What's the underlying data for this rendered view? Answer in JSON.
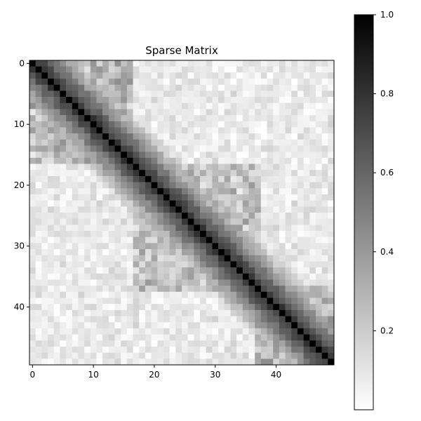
{
  "chart_data": {
    "type": "heatmap",
    "title": "Sparse Matrix",
    "xlabel": "",
    "ylabel": "",
    "rows": 50,
    "cols": 50,
    "x_ticks": [
      0,
      10,
      20,
      30,
      40
    ],
    "y_ticks": [
      0,
      10,
      20,
      30,
      40
    ],
    "colormap": "gray_r",
    "colorbar": {
      "min": 0.0,
      "max": 1.0,
      "ticks": [
        "0.2",
        "0.4",
        "0.6",
        "0.8",
        "1.0"
      ],
      "tick_values": [
        0.2,
        0.4,
        0.6,
        0.8,
        1.0
      ]
    },
    "value_model": {
      "diagonal": 1.0,
      "description": "Banded symmetric-like matrix: values near 1.0 on the main diagonal decaying with distance |i-j|, plus noise",
      "dense_blocks": [
        {
          "rows": [
            0,
            17
          ],
          "cols": [
            0,
            17
          ],
          "level": 0.32
        },
        {
          "rows": [
            17,
            38
          ],
          "cols": [
            17,
            38
          ],
          "level": 0.28
        },
        {
          "rows": [
            37,
            50
          ],
          "cols": [
            37,
            50
          ],
          "level": 0.34
        }
      ]
    },
    "grid": false
  }
}
